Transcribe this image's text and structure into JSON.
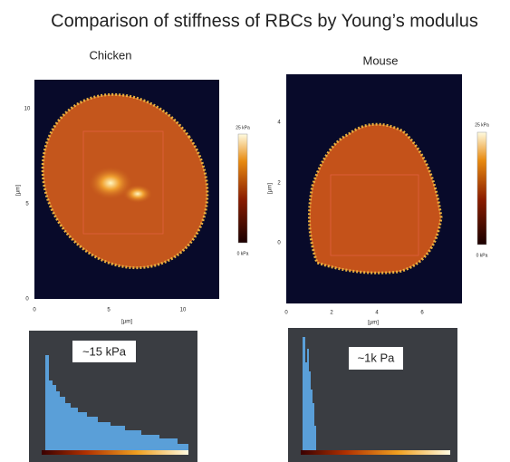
{
  "title": "Comparison of stiffness of RBCs by Young’s modulus",
  "panels": [
    {
      "label": "Chicken",
      "x_ticks": [
        "0",
        "5",
        "10"
      ],
      "y_ticks": [
        "10",
        "5",
        "0"
      ],
      "x_axis_label": "[µm]",
      "y_axis_label": "[µm]",
      "colorbar_max": "25 kPa",
      "colorbar_min": "0 kPa",
      "annotation": "~15 kPa"
    },
    {
      "label": "Mouse",
      "x_ticks": [
        "0",
        "2",
        "4",
        "6"
      ],
      "y_ticks": [
        "4",
        "2",
        "0"
      ],
      "x_axis_label": "[µm]",
      "y_axis_label": "[µm]",
      "colorbar_max": "25 kPa",
      "colorbar_min": "0 kPa",
      "annotation": "~1k Pa"
    }
  ]
}
